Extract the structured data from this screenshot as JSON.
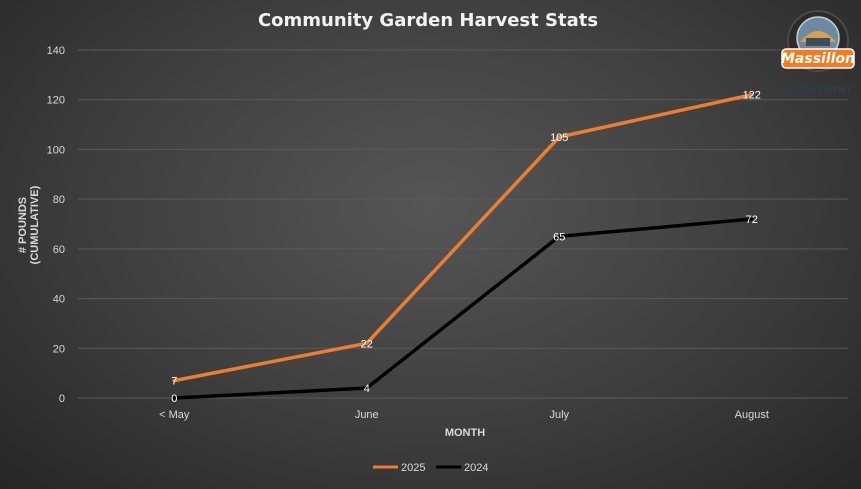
{
  "chart_data": {
    "type": "line",
    "title": "Community Garden Harvest Stats",
    "xlabel": "MONTH",
    "ylabel_lines": [
      "# POUNDS",
      "(CUMULATIVE)"
    ],
    "categories": [
      "< May",
      "June",
      "July",
      "August"
    ],
    "ylim": [
      0,
      140
    ],
    "yticks": [
      0,
      20,
      40,
      60,
      80,
      100,
      120,
      140
    ],
    "grid": true,
    "legend_position": "bottom",
    "series": [
      {
        "name": "2025",
        "color": "#ed7d31",
        "values": [
          7,
          22,
          105,
          122
        ]
      },
      {
        "name": "2024",
        "color": "#000000",
        "values": [
          0,
          4,
          65,
          72
        ]
      }
    ]
  },
  "logo": {
    "name": "Massillon",
    "subtitle": "DEPARTMENT",
    "accent": "#f47b20"
  }
}
